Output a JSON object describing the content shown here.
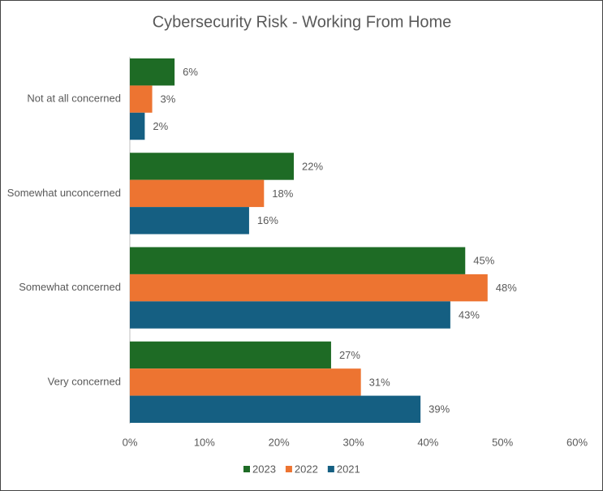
{
  "chart_data": {
    "type": "bar",
    "orientation": "horizontal",
    "title": "Cybersecurity Risk - Working From Home",
    "categories": [
      "Not at all concerned",
      "Somewhat unconcerned",
      "Somewhat concerned",
      "Very concerned"
    ],
    "series": [
      {
        "name": "2023",
        "color": "#1e6b25",
        "values": [
          6,
          22,
          45,
          27
        ],
        "value_labels": [
          "6%",
          "22%",
          "45%",
          "27%"
        ]
      },
      {
        "name": "2022",
        "color": "#ed7431",
        "values": [
          3,
          18,
          48,
          31
        ],
        "value_labels": [
          "3%",
          "18%",
          "48%",
          "31%"
        ]
      },
      {
        "name": "2021",
        "color": "#155f82",
        "values": [
          2,
          16,
          43,
          39
        ],
        "value_labels": [
          "2%",
          "16%",
          "43%",
          "39%"
        ]
      }
    ],
    "xlim": [
      0,
      60
    ],
    "xticks": [
      {
        "value": 0,
        "label": "0%"
      },
      {
        "value": 10,
        "label": "10%"
      },
      {
        "value": 20,
        "label": "20%"
      },
      {
        "value": 30,
        "label": "30%"
      },
      {
        "value": 40,
        "label": "40%"
      },
      {
        "value": 50,
        "label": "50%"
      },
      {
        "value": 60,
        "label": "60%"
      }
    ],
    "legend": "bottom"
  }
}
